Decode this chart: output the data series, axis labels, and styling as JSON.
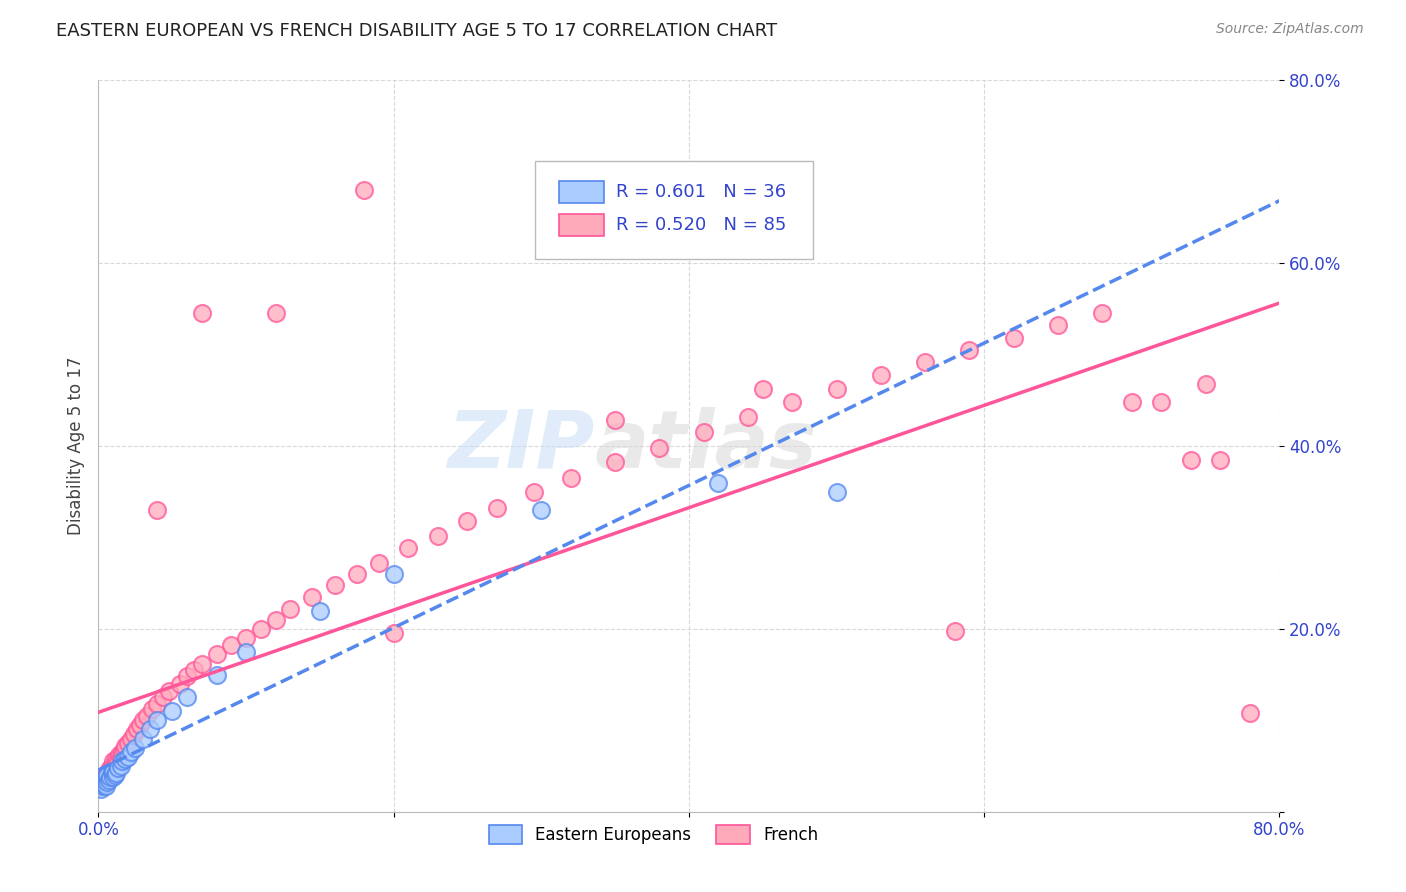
{
  "title": "EASTERN EUROPEAN VS FRENCH DISABILITY AGE 5 TO 17 CORRELATION CHART",
  "source": "Source: ZipAtlas.com",
  "ylabel": "Disability Age 5 to 17",
  "xlim": [
    0.0,
    0.8
  ],
  "ylim": [
    0.0,
    0.8
  ],
  "xticks": [
    0.0,
    0.2,
    0.4,
    0.6,
    0.8
  ],
  "yticks": [
    0.0,
    0.2,
    0.4,
    0.6,
    0.8
  ],
  "xticklabels": [
    "0.0%",
    "",
    "",
    "",
    "80.0%"
  ],
  "yticklabels": [
    "",
    "20.0%",
    "40.0%",
    "60.0%",
    "80.0%"
  ],
  "background_color": "#ffffff",
  "grid_color": "#d0d0d0",
  "eastern_european_color": "#aaccff",
  "french_color": "#ffaabb",
  "eastern_european_line_color": "#5588ee",
  "french_line_color": "#ff5599",
  "R_eastern": 0.601,
  "N_eastern": 36,
  "R_french": 0.52,
  "N_french": 85,
  "eastern_european_x": [
    0.001,
    0.002,
    0.003,
    0.003,
    0.004,
    0.004,
    0.005,
    0.005,
    0.006,
    0.006,
    0.007,
    0.008,
    0.009,
    0.01,
    0.01,
    0.011,
    0.012,
    0.013,
    0.015,
    0.016,
    0.018,
    0.02,
    0.022,
    0.025,
    0.03,
    0.035,
    0.04,
    0.05,
    0.06,
    0.08,
    0.1,
    0.15,
    0.2,
    0.3,
    0.42,
    0.5
  ],
  "eastern_european_y": [
    0.03,
    0.025,
    0.028,
    0.032,
    0.03,
    0.035,
    0.028,
    0.038,
    0.032,
    0.04,
    0.035,
    0.038,
    0.042,
    0.038,
    0.045,
    0.04,
    0.042,
    0.048,
    0.05,
    0.055,
    0.058,
    0.06,
    0.065,
    0.07,
    0.08,
    0.09,
    0.1,
    0.11,
    0.125,
    0.15,
    0.175,
    0.22,
    0.26,
    0.33,
    0.36,
    0.35
  ],
  "french_x": [
    0.001,
    0.001,
    0.002,
    0.002,
    0.003,
    0.003,
    0.004,
    0.004,
    0.005,
    0.005,
    0.006,
    0.006,
    0.007,
    0.007,
    0.008,
    0.008,
    0.009,
    0.009,
    0.01,
    0.01,
    0.011,
    0.012,
    0.013,
    0.014,
    0.015,
    0.016,
    0.017,
    0.018,
    0.02,
    0.022,
    0.024,
    0.026,
    0.028,
    0.03,
    0.033,
    0.036,
    0.04,
    0.044,
    0.048,
    0.055,
    0.06,
    0.065,
    0.07,
    0.08,
    0.09,
    0.1,
    0.11,
    0.12,
    0.13,
    0.145,
    0.16,
    0.175,
    0.19,
    0.21,
    0.23,
    0.25,
    0.27,
    0.295,
    0.32,
    0.35,
    0.38,
    0.41,
    0.44,
    0.47,
    0.5,
    0.53,
    0.56,
    0.59,
    0.62,
    0.65,
    0.68,
    0.7,
    0.72,
    0.74,
    0.76,
    0.78,
    0.2,
    0.35,
    0.45,
    0.58,
    0.04,
    0.07,
    0.12,
    0.18,
    0.75
  ],
  "french_y": [
    0.028,
    0.032,
    0.03,
    0.035,
    0.028,
    0.033,
    0.032,
    0.038,
    0.035,
    0.04,
    0.038,
    0.042,
    0.04,
    0.045,
    0.042,
    0.048,
    0.045,
    0.05,
    0.048,
    0.055,
    0.052,
    0.058,
    0.055,
    0.062,
    0.06,
    0.065,
    0.068,
    0.072,
    0.075,
    0.08,
    0.085,
    0.09,
    0.095,
    0.1,
    0.105,
    0.112,
    0.118,
    0.125,
    0.132,
    0.14,
    0.148,
    0.155,
    0.162,
    0.172,
    0.182,
    0.19,
    0.2,
    0.21,
    0.222,
    0.235,
    0.248,
    0.26,
    0.272,
    0.288,
    0.302,
    0.318,
    0.332,
    0.35,
    0.365,
    0.382,
    0.398,
    0.415,
    0.432,
    0.448,
    0.462,
    0.478,
    0.492,
    0.505,
    0.518,
    0.532,
    0.545,
    0.448,
    0.448,
    0.385,
    0.385,
    0.108,
    0.195,
    0.428,
    0.462,
    0.198,
    0.33,
    0.545,
    0.545,
    0.68,
    0.468
  ]
}
